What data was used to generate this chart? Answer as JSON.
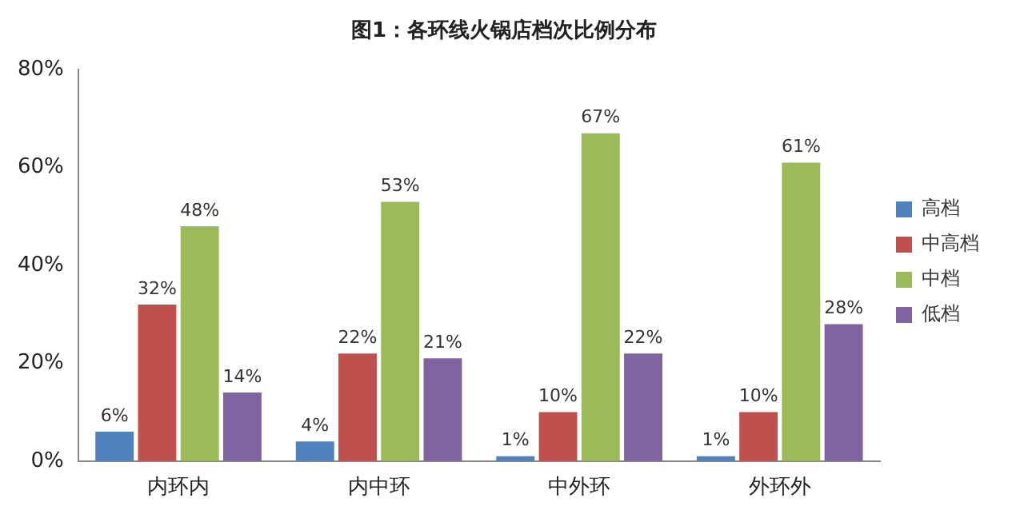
{
  "chart_data": {
    "type": "bar",
    "title": "图1：各环线火锅店档次比例分布",
    "categories": [
      "内环内",
      "内中环",
      "中外环",
      "外环外"
    ],
    "series": [
      {
        "name": "高档",
        "color": "#4f81bd",
        "values": [
          6,
          4,
          1,
          1
        ],
        "value_labels": [
          "6%",
          "4%",
          "1%",
          "1%"
        ]
      },
      {
        "name": "中高档",
        "color": "#c0504d",
        "values": [
          32,
          22,
          10,
          10
        ],
        "value_labels": [
          "32%",
          "22%",
          "10%",
          "10%"
        ]
      },
      {
        "name": "中档",
        "color": "#9bbb59",
        "values": [
          48,
          53,
          67,
          61
        ],
        "value_labels": [
          "48%",
          "53%",
          "67%",
          "61%"
        ]
      },
      {
        "name": "低档",
        "color": "#8064a2",
        "values": [
          14,
          21,
          22,
          28
        ],
        "value_labels": [
          "14%",
          "21%",
          "22%",
          "28%"
        ]
      }
    ],
    "ylim": [
      0,
      80
    ],
    "yticks": [
      {
        "value": 0,
        "label": "0%"
      },
      {
        "value": 20,
        "label": "20%"
      },
      {
        "value": 40,
        "label": "40%"
      },
      {
        "value": 60,
        "label": "60%"
      },
      {
        "value": 80,
        "label": "80%"
      }
    ],
    "grid": false,
    "legend": "right"
  }
}
